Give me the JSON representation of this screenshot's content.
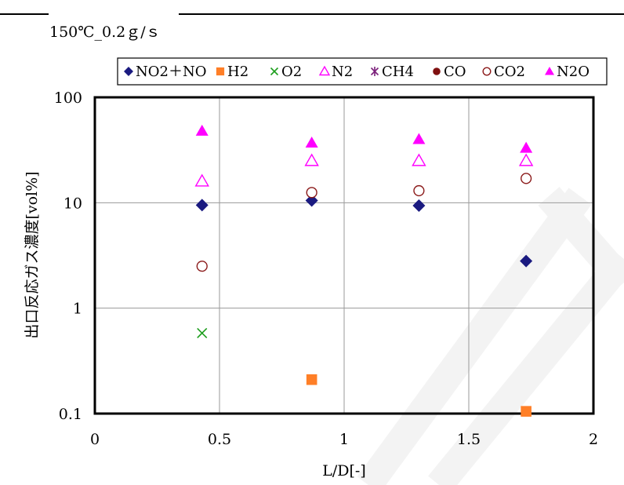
{
  "chart_data": {
    "type": "scatter",
    "title": "150℃_0.2ｇ/ｓ",
    "xlabel": "L/D[-]",
    "ylabel": "出口反応ガス濃度[vol%]",
    "xlim": [
      0,
      2
    ],
    "ylim": [
      0.1,
      100
    ],
    "yscale": "log",
    "grid": true,
    "legend_position": "top",
    "x_ticks": [
      {
        "value": 0,
        "label": "0"
      },
      {
        "value": 0.5,
        "label": "0.5"
      },
      {
        "value": 1,
        "label": "1"
      },
      {
        "value": 1.5,
        "label": "1.5"
      },
      {
        "value": 2,
        "label": "2"
      }
    ],
    "y_ticks": [
      {
        "value": 0.1,
        "label": "0.1"
      },
      {
        "value": 1,
        "label": "1"
      },
      {
        "value": 10,
        "label": "10"
      },
      {
        "value": 100,
        "label": "100"
      }
    ],
    "series": [
      {
        "name": "NO2＋NO",
        "marker": "diamond",
        "color": "#1a1a80",
        "points": [
          {
            "x": 0.43,
            "y": 9.5
          },
          {
            "x": 0.87,
            "y": 10.5
          },
          {
            "x": 1.3,
            "y": 9.4
          },
          {
            "x": 1.73,
            "y": 2.8
          }
        ]
      },
      {
        "name": "H2",
        "marker": "square",
        "color": "#ff7f27",
        "points": [
          {
            "x": 0.87,
            "y": 0.21
          },
          {
            "x": 1.73,
            "y": 0.105
          }
        ]
      },
      {
        "name": "O2",
        "marker": "x",
        "color": "#1e9e1e",
        "points": [
          {
            "x": 0.43,
            "y": 0.58
          }
        ]
      },
      {
        "name": "N2",
        "marker": "triangle-open",
        "color": "#ff00ff",
        "points": [
          {
            "x": 0.43,
            "y": 16
          },
          {
            "x": 0.87,
            "y": 25
          },
          {
            "x": 1.3,
            "y": 25
          },
          {
            "x": 1.73,
            "y": 25
          }
        ]
      },
      {
        "name": "CH4",
        "marker": "star",
        "color": "#7a1f7a",
        "points": []
      },
      {
        "name": "CO",
        "marker": "circle",
        "color": "#7f1010",
        "points": []
      },
      {
        "name": "CO2",
        "marker": "circle-open",
        "color": "#8b1a1a",
        "points": [
          {
            "x": 0.43,
            "y": 2.5
          },
          {
            "x": 0.87,
            "y": 12.5
          },
          {
            "x": 1.3,
            "y": 13
          },
          {
            "x": 1.73,
            "y": 17
          }
        ]
      },
      {
        "name": "N2O",
        "marker": "triangle",
        "color": "#ff00ff",
        "points": [
          {
            "x": 0.43,
            "y": 48
          },
          {
            "x": 0.87,
            "y": 37
          },
          {
            "x": 1.3,
            "y": 40
          },
          {
            "x": 1.73,
            "y": 33
          }
        ]
      }
    ]
  }
}
